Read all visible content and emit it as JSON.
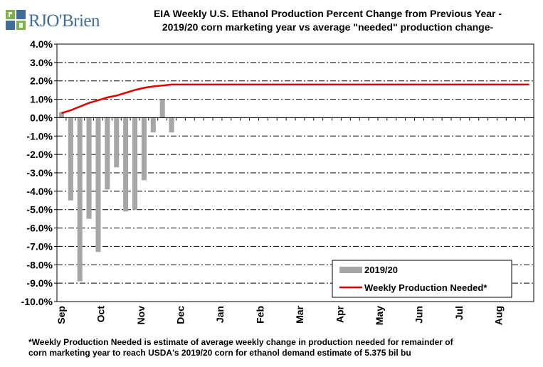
{
  "logo": {
    "text": "RJO'Brien",
    "colors": [
      "#7fb24a",
      "#3f6e9a"
    ]
  },
  "title_lines": [
    "EIA Weekly U.S. Ethanol Production Percent Change from Previous Year -",
    "2019/20 corn marketing year vs average \"needed\" production change-"
  ],
  "footnote_lines": [
    "*Weekly Production Needed is estimate of average weekly change in production needed for remainder of",
    "corn marketing year to reach USDA's 2019/20 corn for ethanol demand estimate of 5.375 bil bu"
  ],
  "chart_data": {
    "type": "bar",
    "ylim": [
      -10,
      4
    ],
    "y_ticks": [
      4,
      3,
      2,
      1,
      0,
      -1,
      -2,
      -3,
      -4,
      -5,
      -6,
      -7,
      -8,
      -9,
      -10
    ],
    "y_tick_labels": [
      "4.0%",
      "3.0%",
      "2.0%",
      "1.0%",
      "0.0%",
      "-1.0%",
      "-2.0%",
      "-3.0%",
      "-4.0%",
      "-5.0%",
      "-6.0%",
      "-7.0%",
      "-8.0%",
      "-9.0%",
      "-10.0%"
    ],
    "grid": true,
    "weeks_total": 52,
    "month_labels": [
      {
        "label": "Sep",
        "week": 0
      },
      {
        "label": "Oct",
        "week": 4.3
      },
      {
        "label": "Nov",
        "week": 8.7
      },
      {
        "label": "Dec",
        "week": 13
      },
      {
        "label": "Jan",
        "week": 17.3
      },
      {
        "label": "Feb",
        "week": 21.7
      },
      {
        "label": "Mar",
        "week": 26
      },
      {
        "label": "Apr",
        "week": 30.4
      },
      {
        "label": "May",
        "week": 34.7
      },
      {
        "label": "Jun",
        "week": 39
      },
      {
        "label": "Jul",
        "week": 43.4
      },
      {
        "label": "Aug",
        "week": 47.7
      }
    ],
    "series": [
      {
        "name": "2019/20",
        "type": "bar",
        "color": "#a6a6a6",
        "values": [
          0.3,
          -4.5,
          -8.9,
          -5.5,
          -7.3,
          -3.9,
          -2.7,
          -5.1,
          -5.0,
          -3.4,
          -0.8,
          1.0,
          -0.8
        ]
      },
      {
        "name": "Weekly Production Needed*",
        "type": "line",
        "color": "#e00000",
        "values": [
          0.25,
          0.4,
          0.6,
          0.8,
          0.95,
          1.1,
          1.2,
          1.35,
          1.5,
          1.62,
          1.7,
          1.75,
          1.8,
          1.8,
          1.8,
          1.8,
          1.8,
          1.8,
          1.8,
          1.8,
          1.8,
          1.8,
          1.8,
          1.8,
          1.8,
          1.8,
          1.8,
          1.8,
          1.8,
          1.8,
          1.8,
          1.8,
          1.8,
          1.8,
          1.8,
          1.8,
          1.8,
          1.8,
          1.8,
          1.8,
          1.8,
          1.8,
          1.8,
          1.8,
          1.8,
          1.8,
          1.8,
          1.8,
          1.8,
          1.8,
          1.8,
          1.8
        ]
      }
    ],
    "legend": {
      "placement": "bottom-right"
    }
  }
}
